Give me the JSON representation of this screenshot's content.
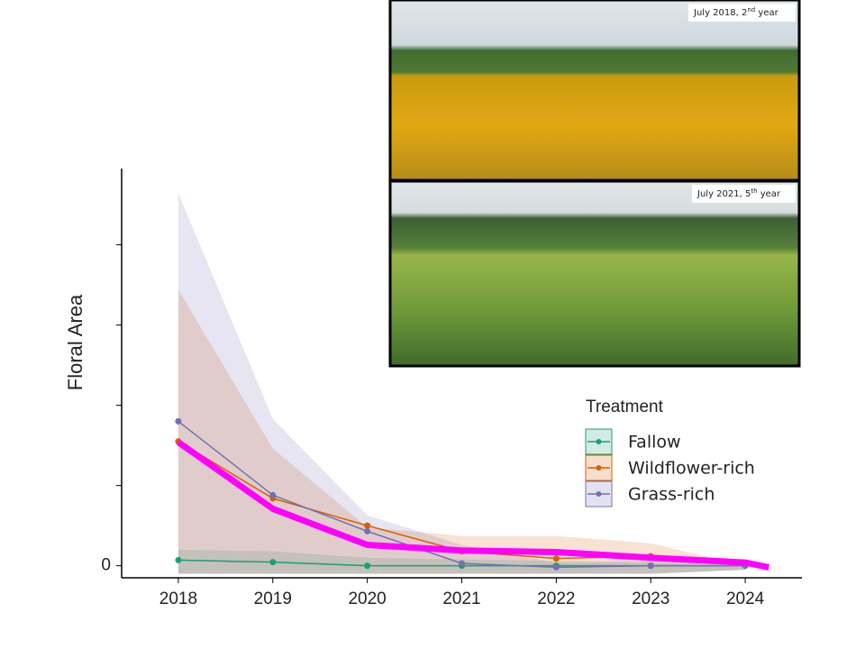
{
  "chart_data": {
    "type": "line",
    "ylabel": "Floral Area",
    "x": [
      2018,
      2019,
      2020,
      2021,
      2022,
      2023,
      2024
    ],
    "xlim": [
      2017.4,
      2024.6
    ],
    "xticks": [
      2018,
      2019,
      2020,
      2021,
      2022,
      2023,
      2024
    ],
    "ylim": [
      -0.15,
      4.95
    ],
    "yticks": [
      0
    ],
    "yminor_ticks": [
      1,
      2,
      3,
      4
    ],
    "legend_title": "Treatment",
    "legend": "right",
    "series": [
      {
        "name": "Fallow",
        "color": "#1b9e77",
        "values": [
          0.07,
          0.045,
          0,
          0,
          0,
          0,
          0
        ],
        "upper": [
          0.2,
          0.18,
          0.1,
          0.08,
          0.06,
          0.06,
          0.05
        ],
        "lower": [
          -0.1,
          -0.1,
          -0.1,
          -0.1,
          -0.1,
          -0.1,
          -0.05
        ]
      },
      {
        "name": "Wildflower-rich",
        "color": "#d95f02",
        "values": [
          1.55,
          0.84,
          0.5,
          0.18,
          0.09,
          0.12,
          0
        ],
        "upper": [
          3.44,
          1.46,
          0.48,
          0.37,
          0.37,
          0.28,
          0
        ],
        "lower": [
          -0.1,
          -0.1,
          -0.1,
          -0.1,
          -0.1,
          -0.1,
          -0.05
        ]
      },
      {
        "name": "Grass-rich",
        "color": "#7570b3",
        "values": [
          1.8,
          0.88,
          0.43,
          0.03,
          -0.02,
          0,
          0
        ],
        "upper": [
          4.64,
          1.83,
          0.63,
          0.26,
          0.04,
          0.04,
          0
        ],
        "lower": [
          -0.1,
          -0.1,
          -0.1,
          -0.1,
          -0.1,
          -0.1,
          -0.05
        ]
      }
    ],
    "trend": {
      "color": "#ff00ff",
      "x": [
        2018,
        2019,
        2020,
        2021,
        2022,
        2023,
        2024,
        2024.25
      ],
      "values": [
        1.54,
        0.71,
        0.26,
        0.19,
        0.17,
        0.1,
        0.04,
        -0.02
      ]
    },
    "photos": [
      {
        "caption_main": "July 2018, 2",
        "caption_sup": "nd",
        "caption_end": " year"
      },
      {
        "caption_main": "July 2021, 5",
        "caption_sup": "th",
        "caption_end": " year"
      }
    ]
  }
}
